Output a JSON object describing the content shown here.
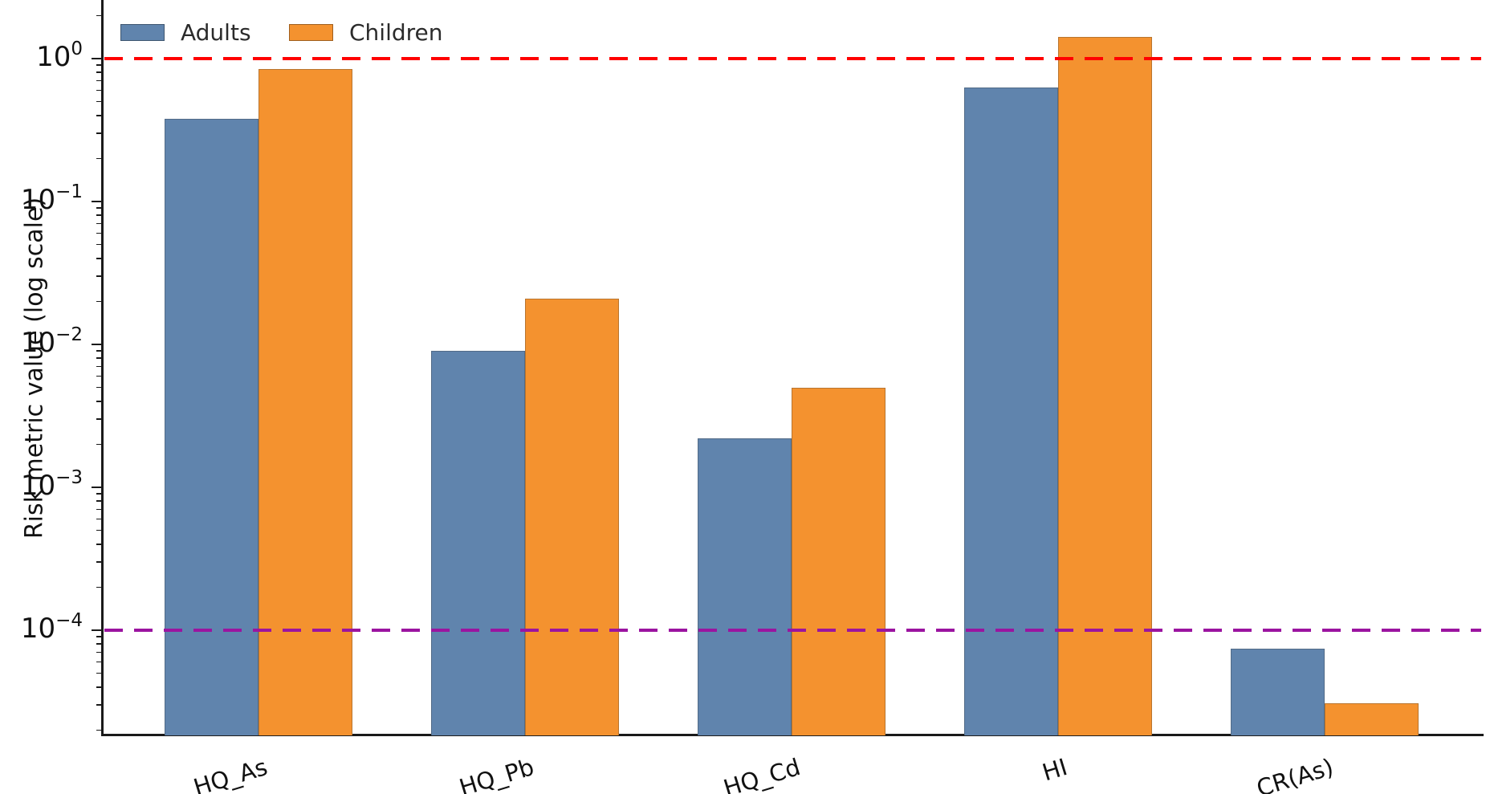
{
  "chart_data": {
    "type": "bar",
    "title": "",
    "xlabel": "",
    "ylabel": "Risk metric value (log scale)",
    "y_scale": "log",
    "grid": false,
    "legend_position": "top-left",
    "categories": [
      "HQ_As",
      "HQ_Pb",
      "HQ_Cd",
      "HI",
      "CR(As)"
    ],
    "series": [
      {
        "name": "Adults",
        "color": "#6084AD",
        "values": [
          0.38,
          0.009,
          0.0022,
          0.63,
          7.4e-05
        ]
      },
      {
        "name": "Children",
        "color": "#F4922F",
        "values": [
          0.85,
          0.021,
          0.005,
          1.42,
          3.1e-05
        ]
      }
    ],
    "y_ticks": [
      {
        "base": "10",
        "exp": "0",
        "value": 1
      },
      {
        "base": "10",
        "exp": "−1",
        "value": 0.1
      },
      {
        "base": "10",
        "exp": "−2",
        "value": 0.01
      },
      {
        "base": "10",
        "exp": "−3",
        "value": 0.001
      },
      {
        "base": "10",
        "exp": "−4",
        "value": 0.0001
      }
    ],
    "ylim": [
      1.85e-05,
      2.6
    ],
    "reference_lines": [
      {
        "name": "hazard-threshold-line",
        "value": 1.0,
        "color": "#FF0000",
        "style": "dashed"
      },
      {
        "name": "cancer-risk-threshold-line",
        "value": 0.0001,
        "color": "#9B14A0",
        "style": "dashed"
      }
    ]
  }
}
